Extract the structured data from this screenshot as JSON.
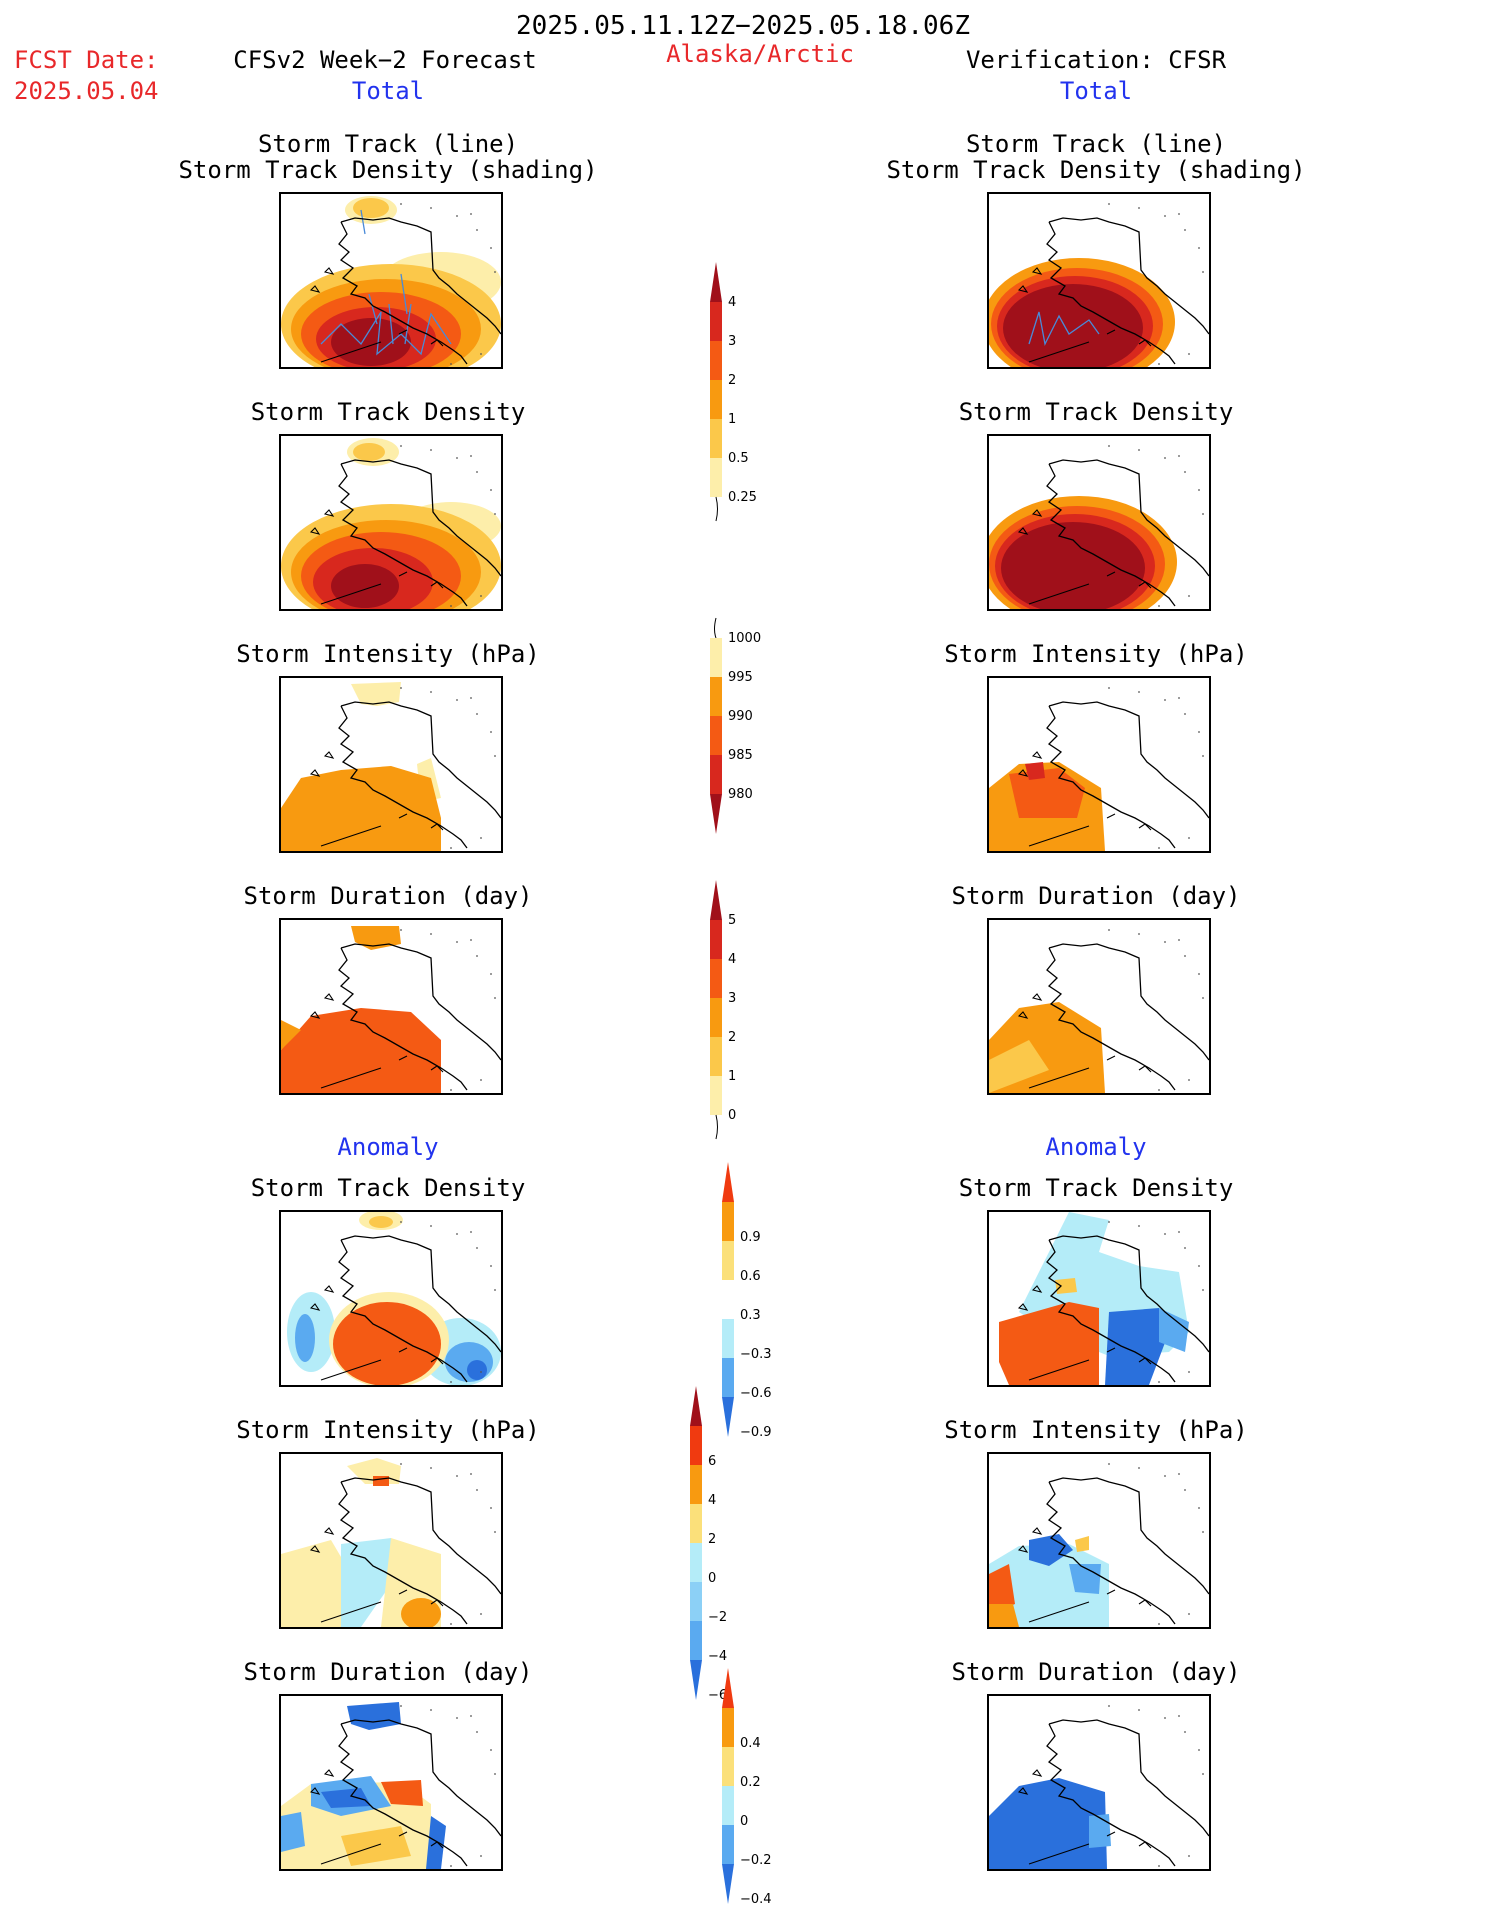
{
  "header": {
    "period": "2025.05.11.12Z−2025.05.18.06Z",
    "fcst_label": "FCST Date:",
    "fcst_date": "2025.05.04",
    "forecast_title": "CFSv2 Week−2 Forecast",
    "region": "Alaska/Arctic",
    "verification_title": "Verification: CFSR",
    "total_left": "Total",
    "total_right": "Total",
    "anomaly_left": "Anomaly",
    "anomaly_right": "Anomaly"
  },
  "panel_titles": {
    "track_line": "Storm Track (line)",
    "track_density_shading": "Storm Track Density (shading)",
    "track_density": "Storm Track Density",
    "intensity": "Storm Intensity (hPa)",
    "duration": "Storm Duration (day)"
  },
  "colorbars": [
    {
      "id": "density",
      "labels": [
        "4",
        "3",
        "2",
        "1",
        "0.5",
        "0.25"
      ],
      "colors": [
        "#a0101a",
        "#d8281e",
        "#f45a14",
        "#f89a10",
        "#fbc84a",
        "#fdeeaa"
      ]
    },
    {
      "id": "intensity",
      "labels": [
        "1000",
        "995",
        "990",
        "985",
        "980"
      ],
      "colors": [
        "#fdeeaa",
        "#f89a10",
        "#f45a14",
        "#d8281e",
        "#a0101a"
      ]
    },
    {
      "id": "duration",
      "labels": [
        "5",
        "4",
        "3",
        "2",
        "1",
        "0"
      ],
      "colors": [
        "#a0101a",
        "#d8281e",
        "#f45a14",
        "#f89a10",
        "#fbc84a",
        "#fdeeaa"
      ]
    },
    {
      "id": "anom_density",
      "labels": [
        "0.9",
        "0.6",
        "0.3",
        "−0.3",
        "−0.6",
        "−0.9"
      ],
      "colors": [
        "#f03a10",
        "#f89a10",
        "#fbe07a",
        "#ffffff",
        "#b4ecf8",
        "#5aaaf0",
        "#2a70dc"
      ]
    },
    {
      "id": "anom_intensity",
      "labels": [
        "6",
        "4",
        "2",
        "0",
        "−2",
        "−4",
        "−6"
      ],
      "colors": [
        "#a0101a",
        "#f03a10",
        "#f89a10",
        "#fbe07a",
        "#b4ecf8",
        "#8cd0f6",
        "#5aaaf0",
        "#2a70dc"
      ]
    },
    {
      "id": "anom_duration",
      "labels": [
        "0.4",
        "0.2",
        "0",
        "−0.2",
        "−0.4"
      ],
      "colors": [
        "#f03a10",
        "#f89a10",
        "#fbe07a",
        "#b4ecf8",
        "#5aaaf0",
        "#2a70dc"
      ]
    }
  ],
  "colors": {
    "dark_red": "#a0101a",
    "red": "#d8281e",
    "orange_red": "#f45a14",
    "orange": "#f89a10",
    "light_orange": "#fbc84a",
    "pale_yellow": "#fdeeaa",
    "light_blue": "#b4ecf8",
    "mid_blue": "#5aaaf0",
    "blue": "#2a70dc",
    "track_line": "#4a8ad8"
  }
}
